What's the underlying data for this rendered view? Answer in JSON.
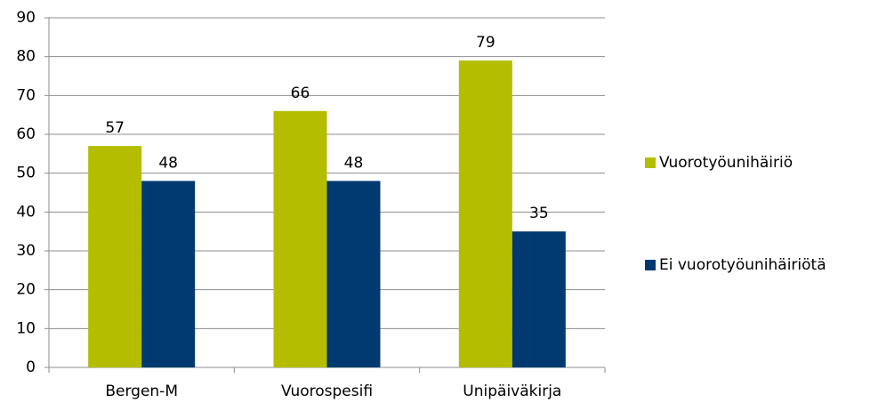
{
  "chart_data": {
    "type": "bar",
    "categories": [
      "Bergen-M",
      "Vuorospesifi",
      "Unipäiväkirja"
    ],
    "series": [
      {
        "name": "Vuorotyöunihäiriö",
        "color": "#b5bd00",
        "values": [
          57,
          66,
          79
        ]
      },
      {
        "name": "Ei vuorotyöunihäiriötä",
        "color": "#003a70",
        "values": [
          48,
          48,
          35
        ]
      }
    ],
    "ylim": [
      0,
      90
    ],
    "yticks": [
      0,
      10,
      20,
      30,
      40,
      50,
      60,
      70,
      80,
      90
    ],
    "grid": true,
    "legend": "right"
  }
}
